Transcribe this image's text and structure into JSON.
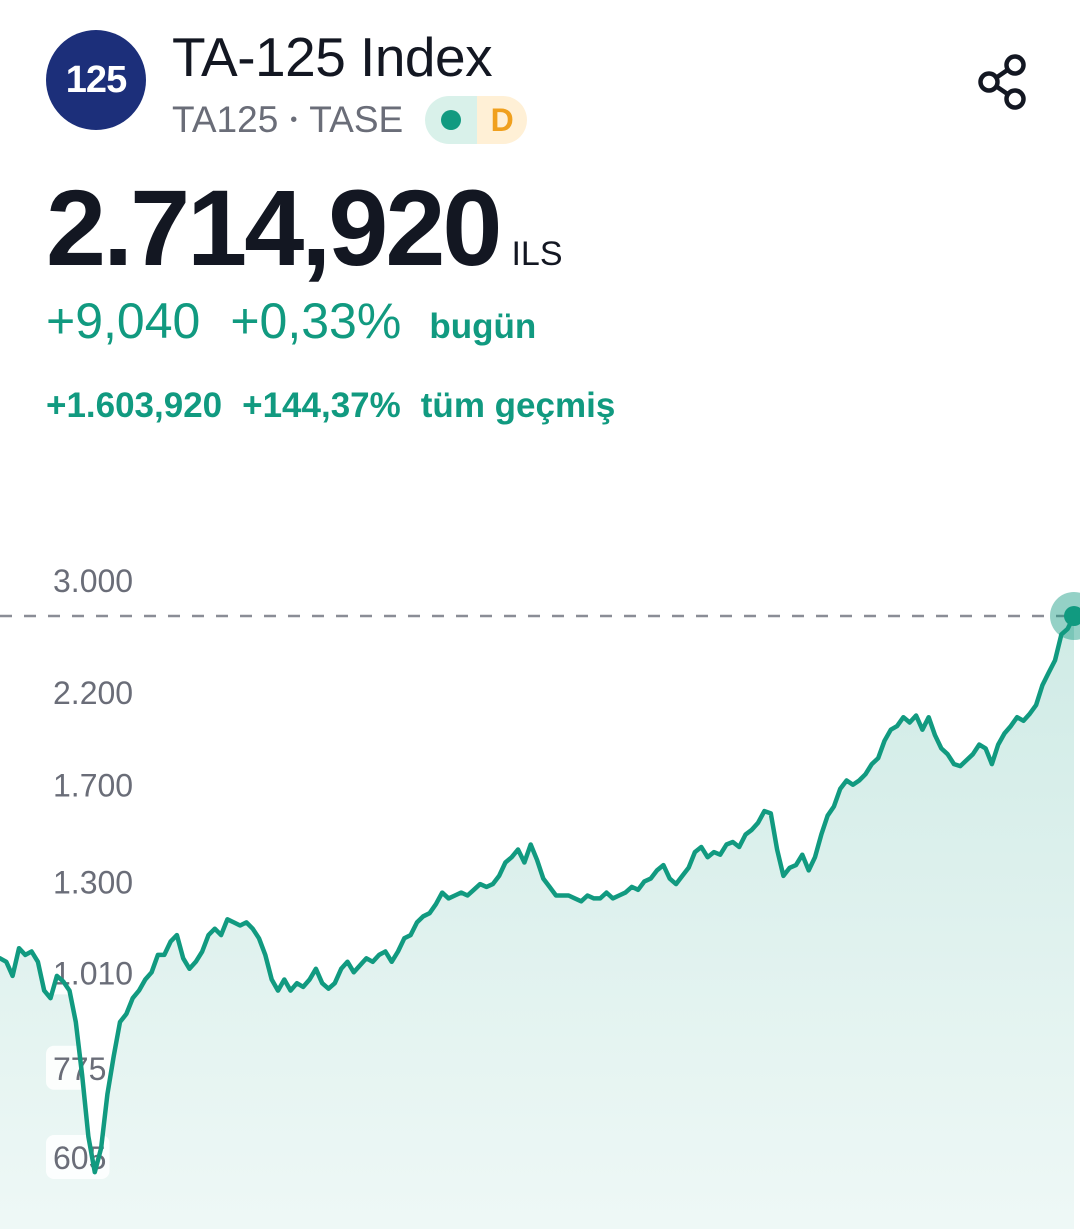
{
  "header": {
    "logo_text": "125",
    "title": "TA-125 Index",
    "ticker": "TA125",
    "separator": "•",
    "exchange": "TASE",
    "delay_badge": "D",
    "share_icon": "share-icon"
  },
  "quote": {
    "price": "2.714,920",
    "currency": "ILS",
    "change_abs": "+9,040",
    "change_pct": "+0,33%",
    "change_label": "bugün",
    "all_abs": "+1.603,920",
    "all_pct": "+144,37%",
    "all_label": "tüm geçmiş"
  },
  "colors": {
    "accent": "#119a80",
    "logo_bg": "#1c2f7a",
    "delay": "#f0a01e"
  },
  "chart_data": {
    "type": "area",
    "y_tick_labels": [
      "3.000",
      "2.200",
      "1.700",
      "1.300",
      "1.010",
      "775",
      "605"
    ],
    "y_scale": "log",
    "current_value": 2714.92,
    "reference_line": 2714.92,
    "series": [
      {
        "values": [
          1050,
          1040,
          1000,
          1080,
          1060,
          1070,
          1040,
          960,
          940,
          1000,
          985,
          960,
          880,
          760,
          640,
          580,
          620,
          720,
          800,
          880,
          900,
          940,
          960,
          990,
          1010,
          1060,
          1060,
          1100,
          1120,
          1050,
          1020,
          1040,
          1070,
          1120,
          1140,
          1120,
          1170,
          1160,
          1150,
          1160,
          1140,
          1110,
          1060,
          990,
          960,
          990,
          960,
          980,
          970,
          990,
          1020,
          980,
          965,
          980,
          1020,
          1040,
          1010,
          1030,
          1050,
          1040,
          1060,
          1070,
          1040,
          1070,
          1110,
          1120,
          1160,
          1180,
          1190,
          1220,
          1260,
          1240,
          1250,
          1260,
          1250,
          1270,
          1290,
          1280,
          1290,
          1320,
          1370,
          1390,
          1420,
          1370,
          1440,
          1380,
          1310,
          1280,
          1250,
          1250,
          1250,
          1240,
          1230,
          1250,
          1240,
          1240,
          1260,
          1240,
          1250,
          1260,
          1280,
          1270,
          1300,
          1310,
          1340,
          1360,
          1310,
          1290,
          1320,
          1350,
          1410,
          1430,
          1390,
          1410,
          1400,
          1440,
          1450,
          1430,
          1480,
          1500,
          1530,
          1580,
          1570,
          1420,
          1320,
          1350,
          1360,
          1400,
          1340,
          1390,
          1480,
          1560,
          1600,
          1680,
          1720,
          1700,
          1720,
          1750,
          1800,
          1830,
          1920,
          1980,
          2000,
          2050,
          2020,
          2060,
          1980,
          2050,
          1950,
          1880,
          1850,
          1800,
          1790,
          1820,
          1850,
          1900,
          1880,
          1800,
          1900,
          1960,
          2000,
          2050,
          2030,
          2070,
          2120,
          2240,
          2320,
          2400,
          2580,
          2620,
          2714.92
        ]
      }
    ]
  }
}
